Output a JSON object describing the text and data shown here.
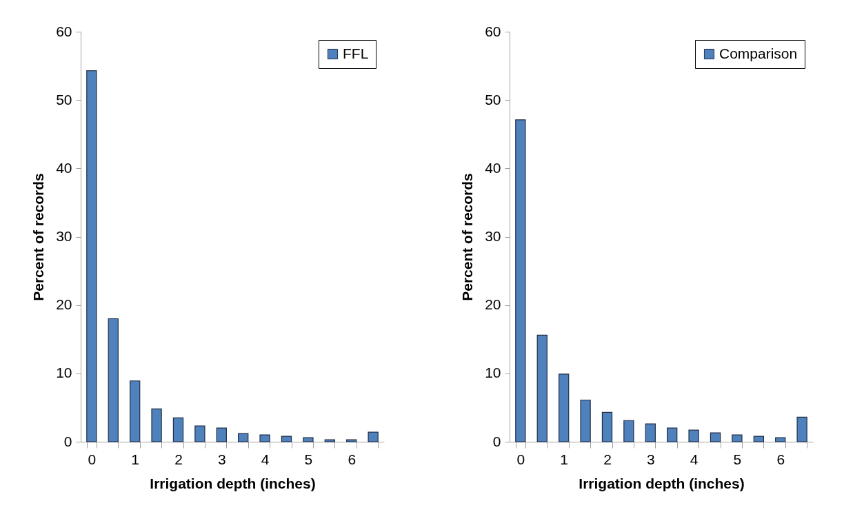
{
  "chart_data": [
    {
      "type": "bar",
      "categories": [
        "0",
        null,
        "1",
        null,
        "2",
        null,
        "3",
        null,
        "4",
        null,
        "5",
        null,
        "6",
        null
      ],
      "xlabel": "Irrigation depth (inches)",
      "ylabel": "Percent of records",
      "ylim": [
        0,
        60
      ],
      "yticks": [
        0,
        10,
        20,
        30,
        40,
        50,
        60
      ],
      "legend": "top right",
      "series": [
        {
          "name": "FFL",
          "color": "#4f81bd",
          "values": [
            54.3,
            18,
            8.9,
            4.8,
            3.5,
            2.3,
            2.0,
            1.2,
            1.0,
            0.8,
            0.6,
            0.3,
            0.3,
            1.4
          ]
        }
      ]
    },
    {
      "type": "bar",
      "categories": [
        "0",
        null,
        "1",
        null,
        "2",
        null,
        "3",
        null,
        "4",
        null,
        "5",
        null,
        "6",
        null
      ],
      "xlabel": "Irrigation depth (inches)",
      "ylabel": "Percent of records",
      "ylim": [
        0,
        60
      ],
      "yticks": [
        0,
        10,
        20,
        30,
        40,
        50,
        60
      ],
      "legend": "top right",
      "series": [
        {
          "name": "Comparison",
          "color": "#4f81bd",
          "values": [
            47.1,
            15.6,
            9.9,
            6.1,
            4.3,
            3.1,
            2.6,
            2.0,
            1.7,
            1.3,
            1.0,
            0.8,
            0.6,
            3.6
          ]
        }
      ]
    }
  ]
}
